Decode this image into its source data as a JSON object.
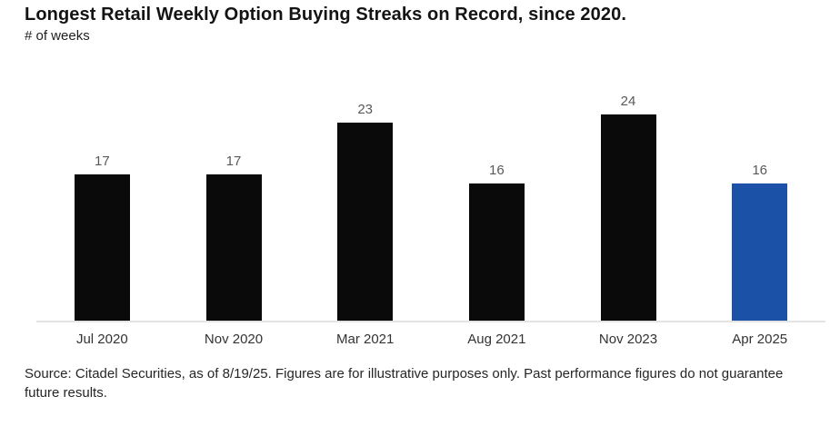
{
  "chart_data": {
    "type": "bar",
    "categories": [
      "Jul 2020",
      "Nov 2020",
      "Mar 2021",
      "Aug 2021",
      "Nov 2023",
      "Apr 2025"
    ],
    "values": [
      17,
      17,
      23,
      16,
      24,
      16
    ],
    "title": "Longest Retail Weekly Option Buying Streaks on Record, since 2020.",
    "subtitle": "# of weeks",
    "xlabel": "",
    "ylabel": "# of weeks",
    "ylim": [
      0,
      28
    ],
    "grid": false,
    "legend": false,
    "value_labels_shown": true,
    "bar_colors": [
      "#0a0a0a",
      "#0a0a0a",
      "#0a0a0a",
      "#0a0a0a",
      "#0a0a0a",
      "#1b52a8"
    ],
    "highlight_index": 5
  },
  "colors": {
    "bar_default": "#0a0a0a",
    "bar_highlight": "#1b52a8",
    "axis_line": "#e4e4e4",
    "value_label": "#595959",
    "tick_label": "#333333"
  },
  "footer": {
    "source": "Source: Citadel Securities, as of 8/19/25. Figures are for illustrative purposes only. Past performance figures do not guarantee future results."
  }
}
